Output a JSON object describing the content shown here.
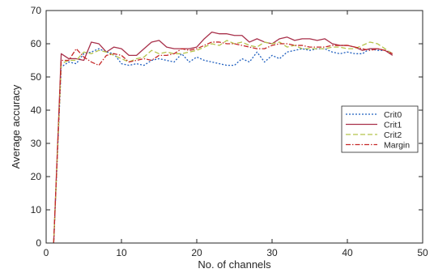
{
  "chart_data": {
    "type": "line",
    "title": "",
    "xlabel": "No. of channels",
    "ylabel": "Average accuracy",
    "xlim": [
      0,
      50
    ],
    "ylim": [
      0,
      70
    ],
    "xticks": [
      0,
      10,
      20,
      30,
      40,
      50
    ],
    "yticks": [
      0,
      10,
      20,
      30,
      40,
      50,
      60,
      70
    ],
    "grid": false,
    "legend_position": "right",
    "series": [
      {
        "name": "Crit0",
        "color": "#1f5fbf",
        "dash": "dotted",
        "x": [
          1,
          2,
          3,
          4,
          5,
          6,
          7,
          8,
          9,
          10,
          11,
          12,
          13,
          14,
          15,
          16,
          17,
          18,
          19,
          20,
          21,
          22,
          23,
          24,
          25,
          26,
          27,
          28,
          29,
          30,
          31,
          32,
          33,
          34,
          35,
          36,
          37,
          38,
          39,
          40,
          41,
          42,
          43,
          44,
          45,
          46
        ],
        "y": [
          0,
          53,
          54.5,
          54,
          57,
          57.5,
          58.5,
          57.5,
          57,
          54,
          53.5,
          54,
          53.5,
          55,
          55.5,
          55,
          54.5,
          57,
          54.5,
          56,
          55,
          54.5,
          54,
          53.5,
          53.5,
          55.5,
          54.5,
          57.5,
          54.5,
          56.5,
          55.5,
          57.5,
          58,
          58.5,
          58,
          58.5,
          58.5,
          57.5,
          57,
          57.5,
          57,
          57,
          58.5,
          58,
          58,
          57
        ]
      },
      {
        "name": "Crit1",
        "color": "#a8304a",
        "dash": "solid",
        "x": [
          1,
          2,
          3,
          4,
          5,
          6,
          7,
          8,
          9,
          10,
          11,
          12,
          13,
          14,
          15,
          16,
          17,
          18,
          19,
          20,
          21,
          22,
          23,
          24,
          25,
          26,
          27,
          28,
          29,
          30,
          31,
          32,
          33,
          34,
          35,
          36,
          37,
          38,
          39,
          40,
          41,
          42,
          43,
          44,
          45,
          46
        ],
        "y": [
          0,
          57,
          55.5,
          55.5,
          55,
          60.5,
          60,
          57.5,
          59,
          58.5,
          56.5,
          56.5,
          58.5,
          60.5,
          61,
          59,
          58.5,
          58.5,
          58.5,
          59,
          61.5,
          63.5,
          63,
          63,
          62.5,
          62.5,
          60.5,
          61.5,
          60.5,
          60,
          61.5,
          62,
          61,
          61.5,
          61.5,
          61,
          61.5,
          60,
          59.5,
          59.5,
          59,
          58,
          58.5,
          58.5,
          58,
          56.5
        ]
      },
      {
        "name": "Crit2",
        "color": "#b5c34a",
        "dash": "dashed",
        "x": [
          1,
          2,
          3,
          4,
          5,
          6,
          7,
          8,
          9,
          10,
          11,
          12,
          13,
          14,
          15,
          16,
          17,
          18,
          19,
          20,
          21,
          22,
          23,
          24,
          25,
          26,
          27,
          28,
          29,
          30,
          31,
          32,
          33,
          34,
          35,
          36,
          37,
          38,
          39,
          40,
          41,
          42,
          43,
          44,
          45,
          46
        ],
        "y": [
          0,
          54,
          55,
          55,
          57.5,
          57,
          58,
          57.5,
          56.5,
          55.5,
          54.5,
          55.5,
          56,
          58,
          57,
          57.5,
          57,
          57,
          57.5,
          58,
          59,
          60,
          59.5,
          61,
          60,
          60.5,
          59.5,
          59,
          60.5,
          60,
          60.5,
          59,
          59.5,
          58.5,
          58.5,
          58.5,
          58.5,
          59,
          59,
          58.5,
          58.5,
          59.5,
          60.5,
          60,
          58.5,
          57
        ]
      },
      {
        "name": "Margin",
        "color": "#c62828",
        "dash": "dashdot",
        "x": [
          1,
          2,
          3,
          4,
          5,
          6,
          7,
          8,
          9,
          10,
          11,
          12,
          13,
          14,
          15,
          16,
          17,
          18,
          19,
          20,
          21,
          22,
          23,
          24,
          25,
          26,
          27,
          28,
          29,
          30,
          31,
          32,
          33,
          34,
          35,
          36,
          37,
          38,
          39,
          40,
          41,
          42,
          43,
          44,
          45,
          46
        ],
        "y": [
          0,
          55,
          55,
          58.5,
          56,
          54.5,
          53.5,
          56.5,
          57,
          56.5,
          54.5,
          55,
          55.5,
          55,
          56.5,
          56.5,
          57,
          58.5,
          58,
          58.5,
          59.5,
          60.5,
          60.5,
          60,
          60,
          59.5,
          59,
          58.5,
          58.5,
          59.5,
          60,
          60,
          59.5,
          59.5,
          59,
          59,
          59,
          59.5,
          59.5,
          59.5,
          59,
          58.5,
          58,
          58.5,
          58,
          57
        ]
      }
    ]
  }
}
